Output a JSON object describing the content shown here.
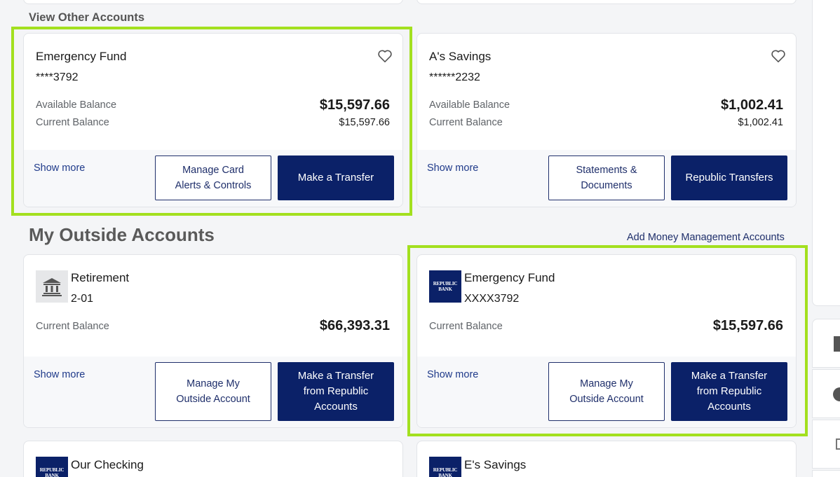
{
  "other_accounts": {
    "heading": "View Other Accounts",
    "cards": [
      {
        "name": "Emergency Fund",
        "number": "****3792",
        "available_label": "Available Balance",
        "available_value": "$15,597.66",
        "current_label": "Current Balance",
        "current_value": "$15,597.66",
        "show_more": "Show more",
        "btn_outline_line1": "Manage Card",
        "btn_outline_line2": "Alerts & Controls",
        "btn_solid": "Make a Transfer"
      },
      {
        "name": "A's Savings",
        "number": "******2232",
        "available_label": "Available Balance",
        "available_value": "$1,002.41",
        "current_label": "Current Balance",
        "current_value": "$1,002.41",
        "show_more": "Show more",
        "btn_outline_line1": "Statements &",
        "btn_outline_line2": "Documents",
        "btn_solid": "Republic Transfers"
      }
    ]
  },
  "outside_accounts": {
    "heading": "My Outside Accounts",
    "add_link": "Add Money Management Accounts",
    "cards": [
      {
        "name": "Retirement",
        "number": "2-01",
        "logo": "bank-building-icon",
        "current_label": "Current Balance",
        "current_value": "$66,393.31",
        "show_more": "Show more",
        "btn_outline_line1": "Manage My",
        "btn_outline_line2": "Outside Account",
        "btn_solid_line1": "Make a Transfer",
        "btn_solid_line2": "from Republic",
        "btn_solid_line3": "Accounts"
      },
      {
        "name": "Emergency Fund",
        "number": "XXXX3792",
        "logo": "republic-bank-logo",
        "current_label": "Current Balance",
        "current_value": "$15,597.66",
        "show_more": "Show more",
        "btn_outline_line1": "Manage My",
        "btn_outline_line2": "Outside Account",
        "btn_solid_line1": "Make a Transfer",
        "btn_solid_line2": "from Republic",
        "btn_solid_line3": "Accounts"
      },
      {
        "name": "Our Checking",
        "logo": "republic-bank-logo"
      },
      {
        "name": "E's Savings",
        "logo": "republic-bank-logo"
      }
    ]
  },
  "logo_text": {
    "line1": "REPUBLIC",
    "line2": "BANK"
  },
  "colors": {
    "primary_button": "#0b2168",
    "highlight": "#a3e01f",
    "page_bg": "#f4f5f7"
  }
}
